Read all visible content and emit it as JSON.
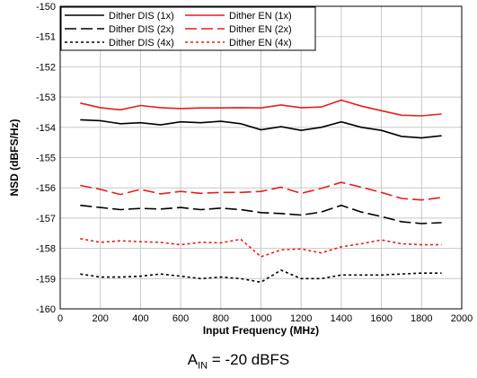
{
  "chart_data": {
    "type": "line",
    "xlabel": "Input Frequency (MHz)",
    "ylabel": "NSD (dBFS/Hz)",
    "xlim": [
      0,
      2000
    ],
    "ylim": [
      -160,
      -150
    ],
    "x_ticks": [
      "0",
      "200",
      "400",
      "600",
      "800",
      "1000",
      "1200",
      "1400",
      "1600",
      "1800",
      "2000"
    ],
    "y_ticks": [
      "-150",
      "-151",
      "-152",
      "-153",
      "-154",
      "-155",
      "-156",
      "-157",
      "-158",
      "-159",
      "-160"
    ],
    "grid": true,
    "legend_position": "top-left",
    "x": [
      100,
      200,
      300,
      400,
      500,
      600,
      700,
      800,
      900,
      1000,
      1100,
      1200,
      1300,
      1400,
      1500,
      1600,
      1700,
      1800,
      1900
    ],
    "series": [
      {
        "name": "Dither DIS (1x)",
        "color": "#000000",
        "dash": "solid",
        "values": [
          -153.75,
          -153.78,
          -153.88,
          -153.85,
          -153.92,
          -153.82,
          -153.85,
          -153.8,
          -153.88,
          -154.08,
          -153.98,
          -154.1,
          -154.0,
          -153.82,
          -154.0,
          -154.1,
          -154.3,
          -154.35,
          -154.28
        ]
      },
      {
        "name": "Dither EN (1x)",
        "color": "#e41e1e",
        "dash": "solid",
        "values": [
          -153.2,
          -153.35,
          -153.42,
          -153.28,
          -153.35,
          -153.38,
          -153.36,
          -153.36,
          -153.35,
          -153.36,
          -153.26,
          -153.35,
          -153.33,
          -153.1,
          -153.3,
          -153.45,
          -153.6,
          -153.62,
          -153.56
        ]
      },
      {
        "name": "Dither DIS (2x)",
        "color": "#000000",
        "dash": "long",
        "values": [
          -156.58,
          -156.65,
          -156.72,
          -156.68,
          -156.7,
          -156.65,
          -156.72,
          -156.67,
          -156.72,
          -156.82,
          -156.85,
          -156.9,
          -156.8,
          -156.58,
          -156.8,
          -156.95,
          -157.12,
          -157.18,
          -157.15
        ]
      },
      {
        "name": "Dither EN (2x)",
        "color": "#e41e1e",
        "dash": "long",
        "values": [
          -155.92,
          -156.05,
          -156.22,
          -156.05,
          -156.2,
          -156.12,
          -156.18,
          -156.15,
          -156.15,
          -156.12,
          -155.98,
          -156.18,
          -156.02,
          -155.82,
          -155.98,
          -156.15,
          -156.35,
          -156.4,
          -156.32
        ]
      },
      {
        "name": "Dither DIS (4x)",
        "color": "#000000",
        "dash": "dotted",
        "values": [
          -158.85,
          -158.95,
          -158.95,
          -158.92,
          -158.85,
          -158.92,
          -159.0,
          -158.95,
          -159.0,
          -159.12,
          -158.72,
          -159.0,
          -159.0,
          -158.88,
          -158.88,
          -158.88,
          -158.85,
          -158.82,
          -158.82
        ]
      },
      {
        "name": "Dither EN (4x)",
        "color": "#e41e1e",
        "dash": "dotted",
        "values": [
          -157.68,
          -157.8,
          -157.75,
          -157.78,
          -157.8,
          -157.88,
          -157.8,
          -157.82,
          -157.7,
          -158.28,
          -158.05,
          -158.02,
          -158.15,
          -157.95,
          -157.85,
          -157.72,
          -157.85,
          -157.88,
          -157.88
        ]
      }
    ]
  },
  "caption": {
    "main": "A",
    "sub": "IN",
    "rest": " = -20 dBFS"
  }
}
